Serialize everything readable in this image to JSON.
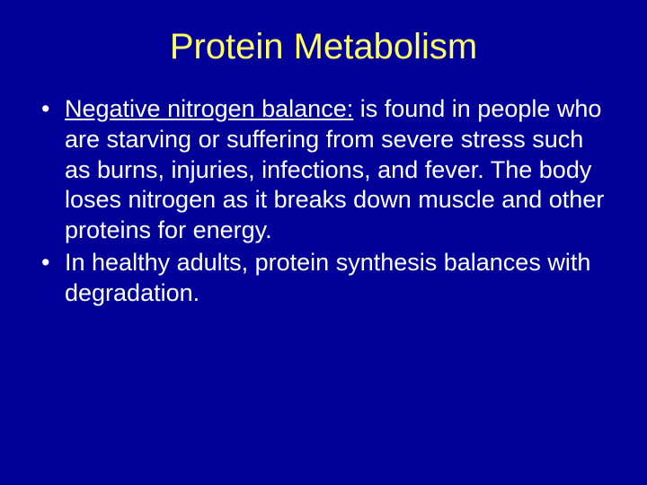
{
  "slide": {
    "background_color": "#000099",
    "title": {
      "text": "Protein Metabolism",
      "color": "#ffff66",
      "font_size_pt": 40,
      "font_family": "Comic Sans MS",
      "align": "center"
    },
    "bullets": [
      {
        "lead_underlined": "Negative nitrogen balance:",
        "rest": " is found in people who are starving or suffering from severe stress such as burns, injuries, infections, and fever. The body loses nitrogen as it breaks down muscle and other proteins for energy."
      },
      {
        "lead_underlined": "",
        "rest": "In healthy adults, protein synthesis balances with degradation."
      }
    ],
    "bullet_style": {
      "text_color": "#ffffff",
      "font_size_pt": 27,
      "marker": "•",
      "marker_color": "#ffffff",
      "font_family": "Comic Sans MS",
      "line_height": 1.25
    }
  }
}
